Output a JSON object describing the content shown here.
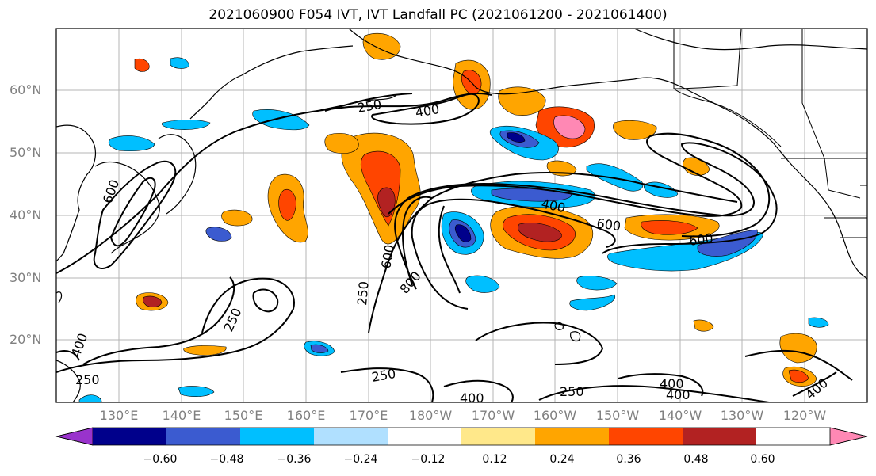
{
  "title": "2021060900 F054 IVT, IVT Landfall PC (2021061200 - 2021061400)",
  "lat_labels": [
    "60°N",
    "50°N",
    "40°N",
    "30°N",
    "20°N"
  ],
  "lon_labels": [
    "130°E",
    "140°E",
    "150°E",
    "160°E",
    "170°E",
    "180°W",
    "170°W",
    "160°W",
    "150°W",
    "140°W",
    "130°W",
    "120°W"
  ],
  "colorbar": {
    "colors": [
      "#9933cc",
      "#00008b",
      "#3b5bd0",
      "#00bfff",
      "#b0e0ff",
      "#ffffff",
      "#ffe88a",
      "#ffa500",
      "#ff4500",
      "#b22222",
      "#ff88b4"
    ],
    "tick_labels": [
      "−0.60",
      "−0.48",
      "−0.36",
      "−0.24",
      "−0.12",
      "0.12",
      "0.24",
      "0.36",
      "0.48",
      "0.60"
    ]
  },
  "contour_labels": {
    "ivt_250": "250",
    "ivt_400": "400",
    "ivt_600": "600",
    "ivt_800": "800"
  }
}
